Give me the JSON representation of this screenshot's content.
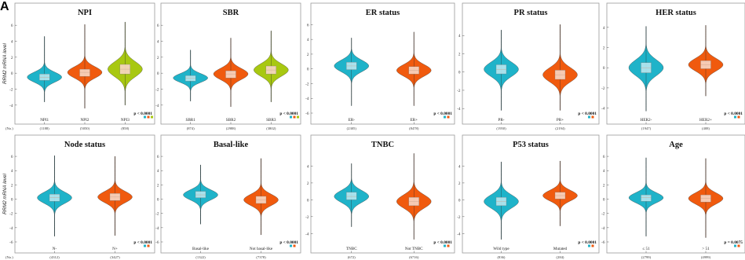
{
  "figure_label": "A",
  "colors": {
    "cyan": "#1fb3c9",
    "orange": "#f05a0e",
    "lime": "#a8c811",
    "box": "#f7d6c4",
    "box_cyan": "#b7e6ee"
  },
  "chart_data": [
    {
      "type": "violin",
      "title": "NPI",
      "ylabel": "RRM2 mRNA level",
      "yticks": [
        6,
        4,
        2,
        0,
        -2,
        -4
      ],
      "ylim": [
        -5,
        7
      ],
      "row_label": "(No.)",
      "categories": [
        "NPI1",
        "NPI2",
        "NPI3"
      ],
      "counts": [
        "(1188)",
        "(5050)",
        "(858)"
      ],
      "colors": [
        "cyan",
        "orange",
        "lime"
      ],
      "medians": [
        -0.5,
        0.1,
        0.5
      ],
      "box_low": [
        -0.9,
        -0.4,
        -0.1
      ],
      "box_high": [
        -0.1,
        0.5,
        1.1
      ],
      "ymin": [
        -3.6,
        -4.4,
        -4.0
      ],
      "ymax": [
        4.6,
        6.1,
        6.4
      ],
      "p_value": "p < 0.0001"
    },
    {
      "type": "violin",
      "title": "SBR",
      "yticks": [
        6,
        4,
        2,
        0,
        -2,
        -4
      ],
      "ylim": [
        -5,
        7
      ],
      "categories": [
        "SBR1",
        "SBR2",
        "SBR3"
      ],
      "counts": [
        "(874)",
        "(2988)",
        "(3802)"
      ],
      "colors": [
        "cyan",
        "orange",
        "lime"
      ],
      "medians": [
        -0.6,
        -0.1,
        0.4
      ],
      "box_low": [
        -1.0,
        -0.6,
        -0.1
      ],
      "box_high": [
        -0.3,
        0.3,
        0.9
      ],
      "ymin": [
        -3.5,
        -4.2,
        -3.6
      ],
      "ymax": [
        2.9,
        4.4,
        5.3
      ],
      "p_value": "p < 0.0001"
    },
    {
      "type": "violin",
      "title": "ER status",
      "yticks": [
        6,
        4,
        2,
        0,
        -2,
        -4,
        -6
      ],
      "ylim": [
        -6,
        7
      ],
      "categories": [
        "ER-",
        "ER+"
      ],
      "counts": [
        "(2305)",
        "(8478)"
      ],
      "colors": [
        "cyan",
        "orange"
      ],
      "medians": [
        0.4,
        -0.2
      ],
      "box_low": [
        -0.1,
        -0.7
      ],
      "box_high": [
        0.9,
        0.3
      ],
      "ymin": [
        -5.0,
        -5.0
      ],
      "ymax": [
        4.2,
        5.0
      ],
      "p_value": "p < 0.0001"
    },
    {
      "type": "violin",
      "title": "PR status",
      "yticks": [
        4,
        2,
        0,
        -2,
        -4
      ],
      "ylim": [
        -4.5,
        6
      ],
      "categories": [
        "PR-",
        "PR+"
      ],
      "counts": [
        "(1950)",
        "(2194)"
      ],
      "colors": [
        "cyan",
        "orange"
      ],
      "medians": [
        0.3,
        -0.3
      ],
      "box_low": [
        -0.2,
        -0.8
      ],
      "box_high": [
        0.8,
        0.2
      ],
      "ymin": [
        -4.2,
        -4.2
      ],
      "ymax": [
        4.6,
        5.2
      ],
      "p_value": "p < 0.0001"
    },
    {
      "type": "violin",
      "title": "HER status",
      "yticks": [
        4,
        2,
        0,
        -2,
        -4
      ],
      "ylim": [
        -4.5,
        5
      ],
      "categories": [
        "HER2-",
        "HER2+"
      ],
      "counts": [
        "(1947)",
        "(408)"
      ],
      "colors": [
        "cyan",
        "orange"
      ],
      "medians": [
        0.0,
        0.3
      ],
      "box_low": [
        -0.5,
        -0.1
      ],
      "box_high": [
        0.5,
        0.7
      ],
      "ymin": [
        -4.3,
        -2.8
      ],
      "ymax": [
        4.1,
        4.2
      ],
      "p_value": "p < 0.0001"
    },
    {
      "type": "violin",
      "title": "Node status",
      "ylabel": "RRM2 mRNA level",
      "yticks": [
        6,
        4,
        2,
        0,
        -2,
        -4,
        -6
      ],
      "ylim": [
        -6,
        7
      ],
      "row_label": "(No.)",
      "categories": [
        "N-",
        "N+"
      ],
      "counts": [
        "(4312)",
        "(3427)"
      ],
      "colors": [
        "cyan",
        "orange"
      ],
      "medians": [
        0.2,
        0.3
      ],
      "box_low": [
        -0.3,
        -0.2
      ],
      "box_high": [
        0.7,
        0.8
      ],
      "ymin": [
        -5.2,
        -5.1
      ],
      "ymax": [
        6.1,
        6.0
      ],
      "p_value": "p < 0.0001"
    },
    {
      "type": "violin",
      "title": "Basal-like",
      "yticks": [
        6,
        4,
        2,
        0,
        -2,
        -4,
        -6
      ],
      "ylim": [
        -6,
        7
      ],
      "categories": [
        "Basal-like",
        "Not basal-like"
      ],
      "counts": [
        "(1322)",
        "(7378)"
      ],
      "colors": [
        "cyan",
        "orange"
      ],
      "medians": [
        0.6,
        -0.1
      ],
      "box_low": [
        0.2,
        -0.6
      ],
      "box_high": [
        1.1,
        0.4
      ],
      "ymin": [
        -3.5,
        -5.0
      ],
      "ymax": [
        4.8,
        5.7
      ],
      "p_value": "p < 0.0001"
    },
    {
      "type": "violin",
      "title": "TNBC",
      "yticks": [
        4,
        2,
        0,
        -2,
        -4
      ],
      "ylim": [
        -5,
        6
      ],
      "categories": [
        "TNBC",
        "Not TNBC"
      ],
      "counts": [
        "(672)",
        "(6716)"
      ],
      "colors": [
        "cyan",
        "orange"
      ],
      "medians": [
        0.4,
        -0.2
      ],
      "box_low": [
        0.0,
        -0.7
      ],
      "box_high": [
        0.9,
        0.3
      ],
      "ymin": [
        -3.2,
        -4.7
      ],
      "ymax": [
        4.3,
        5.5
      ],
      "p_value": "p < 0.0001"
    },
    {
      "type": "violin",
      "title": "P53 status",
      "yticks": [
        4,
        2,
        0,
        -2,
        -4
      ],
      "ylim": [
        -5,
        6
      ],
      "categories": [
        "Wild type",
        "Mutated"
      ],
      "counts": [
        "(836)",
        "(284)"
      ],
      "colors": [
        "cyan",
        "orange"
      ],
      "medians": [
        -0.2,
        0.5
      ],
      "box_low": [
        -0.7,
        0.1
      ],
      "box_high": [
        0.3,
        0.9
      ],
      "ymin": [
        -4.7,
        -3.1
      ],
      "ymax": [
        4.5,
        4.6
      ],
      "p_value": "p < 0.0001"
    },
    {
      "type": "violin",
      "title": "Age",
      "yticks": [
        6,
        4,
        2,
        0,
        -2,
        -4,
        -6
      ],
      "ylim": [
        -6,
        7
      ],
      "categories": [
        "≤ 51",
        "> 51"
      ],
      "counts": [
        "(2799)",
        "(4999)"
      ],
      "colors": [
        "cyan",
        "orange"
      ],
      "medians": [
        0.2,
        0.1
      ],
      "box_low": [
        -0.3,
        -0.4
      ],
      "box_high": [
        0.6,
        0.6
      ],
      "ymin": [
        -5.2,
        -5.4
      ],
      "ymax": [
        5.8,
        5.7
      ],
      "p_value": "p = 0.0075"
    }
  ]
}
